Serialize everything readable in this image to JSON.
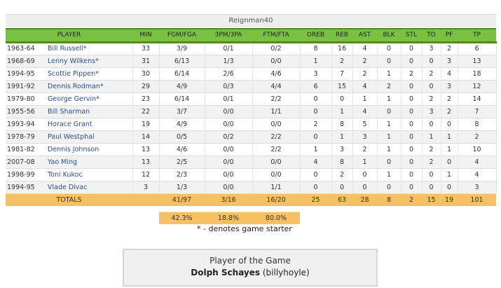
{
  "team": {
    "name": "Reignman40"
  },
  "columns": [
    "PLAYER",
    "MIN",
    "FGM/FGA",
    "3PM/3PA",
    "FTM/FTA",
    "OREB",
    "REB",
    "AST",
    "BLK",
    "STL",
    "TO",
    "PF",
    "TP"
  ],
  "rows": [
    {
      "year": "1963-64",
      "name": "Bill Russell*",
      "min": "33",
      "fg": "3/9",
      "tp3": "0/1",
      "ft": "0/2",
      "oreb": "8",
      "reb": "16",
      "ast": "4",
      "blk": "0",
      "stl": "0",
      "to": "3",
      "pf": "2",
      "tp": "6"
    },
    {
      "year": "1968-69",
      "name": "Lenny Wilkens*",
      "min": "31",
      "fg": "6/13",
      "tp3": "1/3",
      "ft": "0/0",
      "oreb": "1",
      "reb": "2",
      "ast": "2",
      "blk": "0",
      "stl": "0",
      "to": "0",
      "pf": "3",
      "tp": "13"
    },
    {
      "year": "1994-95",
      "name": "Scottie Pippen*",
      "min": "30",
      "fg": "6/14",
      "tp3": "2/6",
      "ft": "4/6",
      "oreb": "3",
      "reb": "7",
      "ast": "2",
      "blk": "1",
      "stl": "2",
      "to": "2",
      "pf": "4",
      "tp": "18"
    },
    {
      "year": "1991-92",
      "name": "Dennis Rodman*",
      "min": "29",
      "fg": "4/9",
      "tp3": "0/3",
      "ft": "4/4",
      "oreb": "6",
      "reb": "15",
      "ast": "4",
      "blk": "2",
      "stl": "0",
      "to": "0",
      "pf": "3",
      "tp": "12"
    },
    {
      "year": "1979-80",
      "name": "George Gervin*",
      "min": "23",
      "fg": "6/14",
      "tp3": "0/1",
      "ft": "2/2",
      "oreb": "0",
      "reb": "0",
      "ast": "1",
      "blk": "1",
      "stl": "0",
      "to": "2",
      "pf": "2",
      "tp": "14"
    },
    {
      "year": "1955-56",
      "name": "Bill Sharman",
      "min": "22",
      "fg": "3/7",
      "tp3": "0/0",
      "ft": "1/1",
      "oreb": "0",
      "reb": "1",
      "ast": "4",
      "blk": "0",
      "stl": "0",
      "to": "3",
      "pf": "2",
      "tp": "7"
    },
    {
      "year": "1993-94",
      "name": "Horace Grant",
      "min": "19",
      "fg": "4/9",
      "tp3": "0/0",
      "ft": "0/0",
      "oreb": "2",
      "reb": "8",
      "ast": "5",
      "blk": "1",
      "stl": "0",
      "to": "0",
      "pf": "0",
      "tp": "8"
    },
    {
      "year": "1978-79",
      "name": "Paul Westphal",
      "min": "14",
      "fg": "0/5",
      "tp3": "0/2",
      "ft": "2/2",
      "oreb": "0",
      "reb": "1",
      "ast": "3",
      "blk": "1",
      "stl": "0",
      "to": "1",
      "pf": "1",
      "tp": "2"
    },
    {
      "year": "1981-82",
      "name": "Dennis Johnson",
      "min": "13",
      "fg": "4/6",
      "tp3": "0/0",
      "ft": "2/2",
      "oreb": "1",
      "reb": "3",
      "ast": "2",
      "blk": "1",
      "stl": "0",
      "to": "2",
      "pf": "1",
      "tp": "10"
    },
    {
      "year": "2007-08",
      "name": "Yao Ming",
      "min": "13",
      "fg": "2/5",
      "tp3": "0/0",
      "ft": "0/0",
      "oreb": "4",
      "reb": "8",
      "ast": "1",
      "blk": "0",
      "stl": "0",
      "to": "2",
      "pf": "0",
      "tp": "4"
    },
    {
      "year": "1998-99",
      "name": "Toni Kukoc",
      "min": "12",
      "fg": "2/3",
      "tp3": "0/0",
      "ft": "0/0",
      "oreb": "0",
      "reb": "2",
      "ast": "0",
      "blk": "1",
      "stl": "0",
      "to": "0",
      "pf": "1",
      "tp": "4"
    },
    {
      "year": "1994-95",
      "name": "Vlade Divac",
      "min": "3",
      "fg": "1/3",
      "tp3": "0/0",
      "ft": "1/1",
      "oreb": "0",
      "reb": "0",
      "ast": "0",
      "blk": "0",
      "stl": "0",
      "to": "0",
      "pf": "0",
      "tp": "3"
    }
  ],
  "totals": {
    "label": "TOTALS",
    "min": "",
    "fg": "41/97",
    "tp3": "3/16",
    "ft": "16/20",
    "oreb": "25",
    "reb": "63",
    "ast": "28",
    "blk": "8",
    "stl": "2",
    "to": "15",
    "pf": "19",
    "tp": "101"
  },
  "percentages": {
    "fg": "42.3%",
    "tp3": "18.8%",
    "ft": "80.0%"
  },
  "starter_note": "* - denotes game starter",
  "player_of_game": {
    "title": "Player of the Game",
    "player": "Dolph Schayes",
    "owner": "(billyhoyle)"
  },
  "colors": {
    "header_green": "#7ac143",
    "header_border": "#4f8a26",
    "totals_orange": "#f7c065",
    "link_blue": "#2a4f8a"
  }
}
